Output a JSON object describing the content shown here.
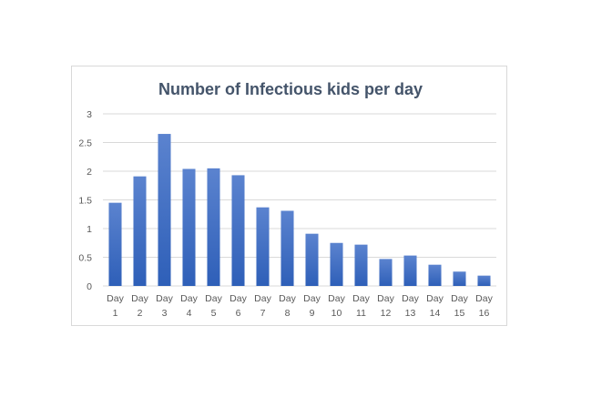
{
  "chart_data": {
    "type": "bar",
    "title": "Number of Infectious kids per day",
    "xlabel": "",
    "ylabel": "",
    "categories": [
      [
        "Day",
        "1"
      ],
      [
        "Day",
        "2"
      ],
      [
        "Day",
        "3"
      ],
      [
        "Day",
        "4"
      ],
      [
        "Day",
        "5"
      ],
      [
        "Day",
        "6"
      ],
      [
        "Day",
        "7"
      ],
      [
        "Day",
        "8"
      ],
      [
        "Day",
        "9"
      ],
      [
        "Day",
        "10"
      ],
      [
        "Day",
        "11"
      ],
      [
        "Day",
        "12"
      ],
      [
        "Day",
        "13"
      ],
      [
        "Day",
        "14"
      ],
      [
        "Day",
        "15"
      ],
      [
        "Day",
        "16"
      ]
    ],
    "values": [
      1.45,
      1.91,
      2.65,
      2.04,
      2.05,
      1.93,
      1.37,
      1.31,
      0.91,
      0.75,
      0.72,
      0.47,
      0.53,
      0.37,
      0.25,
      0.18
    ],
    "ylim": [
      0,
      3
    ],
    "yticks": [
      "0",
      "0.5",
      "1",
      "1.5",
      "2",
      "2.5",
      "3"
    ],
    "grid": true,
    "legend": "none",
    "colors": {
      "bar_top": "#5b83cf",
      "bar_bottom": "#2e5fb8",
      "title": "#44546a"
    }
  }
}
